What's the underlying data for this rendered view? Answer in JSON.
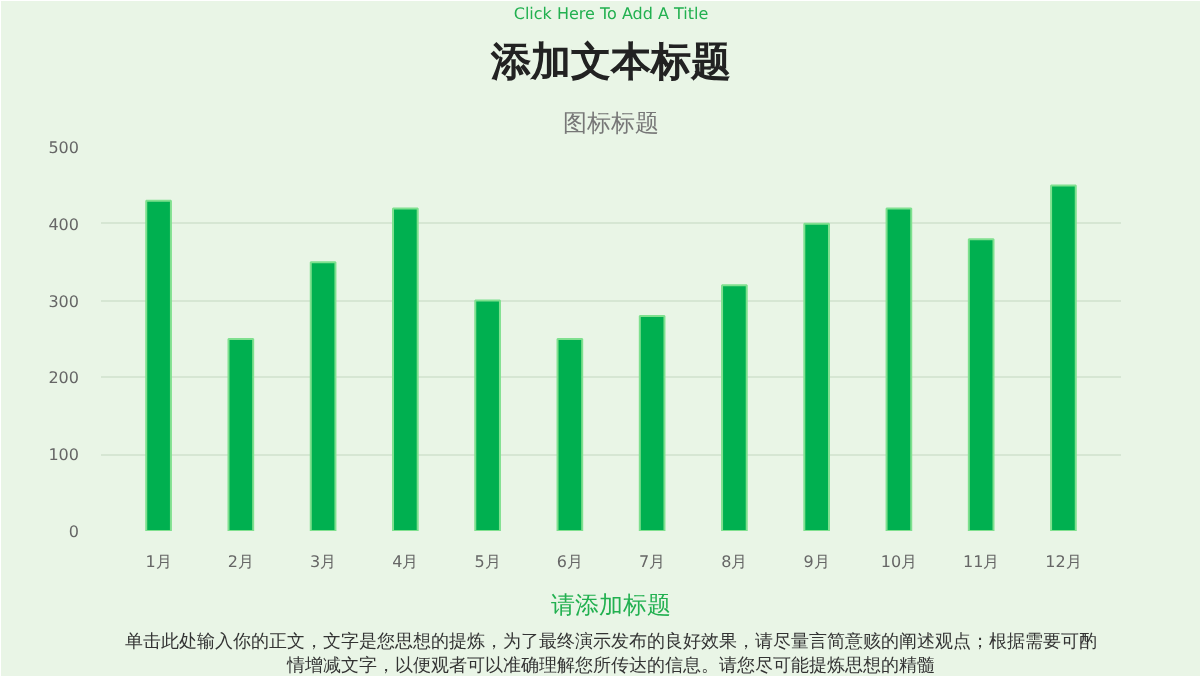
{
  "chart_data": {
    "type": "bar",
    "title": "添加文本标题",
    "subtitle": "Click Here To Add A Title",
    "annotations": [
      "图标标题",
      "请添加标题",
      "单击此处输入你的正文，文字是您思想的提炼，为了最终演示发布的良好效果，请尽量言简意赅的阐述观点；根据需要可酌情增减文字，以便观者可以准确理解您所传达的信息。请您尽可能提炼思想的精髓"
    ],
    "categories": [
      "1月",
      "2月",
      "3月",
      "4月",
      "5月",
      "6月",
      "7月",
      "8月",
      "9月",
      "10月",
      "11月",
      "12月"
    ],
    "values": [
      430,
      250,
      350,
      420,
      300,
      250,
      280,
      320,
      400,
      420,
      380,
      450
    ],
    "color": "#00b050",
    "ylim": [
      0,
      500
    ],
    "yticks": [
      0,
      100,
      200,
      300,
      400,
      500
    ],
    "grid": "y"
  }
}
